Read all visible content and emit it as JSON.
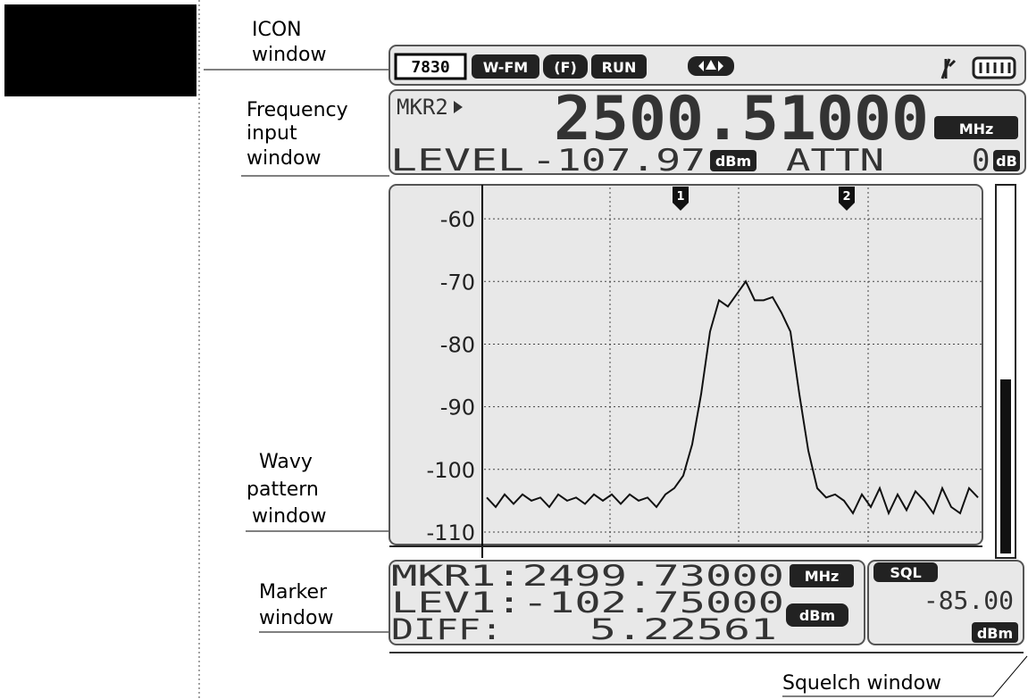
{
  "callouts": {
    "icon": [
      "ICON",
      "window"
    ],
    "frequency": [
      "Frequency",
      "input",
      "window"
    ],
    "wavy": [
      "Wavy",
      "pattern",
      "window"
    ],
    "marker": [
      "Marker",
      "window"
    ],
    "squelch": "Squelch window"
  },
  "icon_bar": {
    "items": [
      "7830",
      "W-FM",
      "(F)",
      "RUN"
    ]
  },
  "frequency_window": {
    "marker": "MKR2",
    "frequency": "2500.51000",
    "frequency_unit": "MHz",
    "level_label": "LEVEL",
    "level": "-107.97",
    "level_unit": "dBm",
    "attn_label": "ATTN",
    "attn": "0",
    "attn_unit": "dB"
  },
  "spectrum": {
    "type": "line",
    "ylim": [
      -112,
      -55
    ],
    "yticks": [
      -60,
      -70,
      -80,
      -90,
      -100,
      -110
    ],
    "grid": true,
    "color": "#111111",
    "markers": [
      "1",
      "2"
    ],
    "values": [
      -104.5,
      -106,
      -104,
      -105.5,
      -104,
      -105,
      -104.5,
      -106,
      -104,
      -105,
      -104.5,
      -105.5,
      -104,
      -105,
      -104,
      -105.5,
      -104,
      -105,
      -104.5,
      -106,
      -104,
      -103,
      -101,
      -96,
      -88,
      -78,
      -73,
      -74,
      -72,
      -70,
      -73,
      -73,
      -72.5,
      -75,
      -78,
      -88,
      -97,
      -103,
      -104.5,
      -104,
      -105,
      -107,
      -104,
      -106,
      -103,
      -107,
      -104,
      -106.5,
      -103.5,
      -105,
      -107,
      -103,
      -106,
      -107,
      -103,
      -104.5
    ]
  },
  "marker_window": {
    "rows": [
      [
        "MKR1:2499.73000",
        "MHz"
      ],
      [
        "LEV1:-102.75000",
        "dBm"
      ],
      [
        "DIFF:",
        "5.22561"
      ]
    ]
  },
  "squelch_window": {
    "label": "SQL",
    "value": "-85.00",
    "unit": "dBm"
  }
}
